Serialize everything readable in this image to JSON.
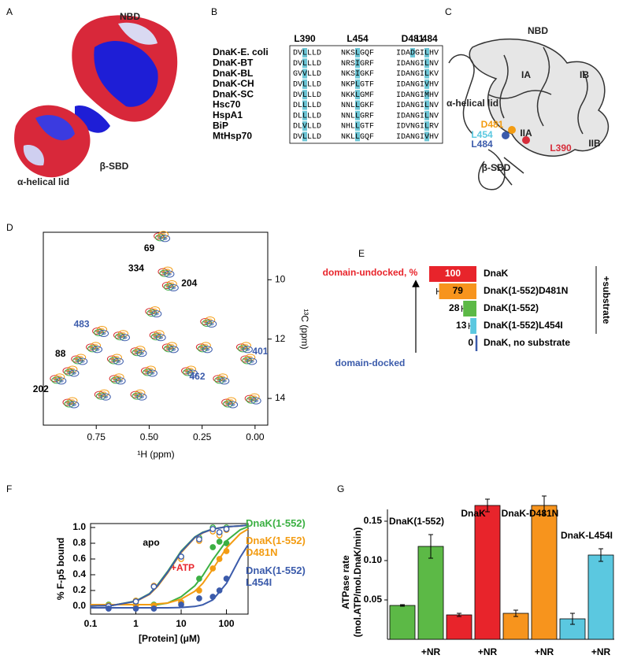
{
  "panel_labels": [
    "A",
    "B",
    "C",
    "D",
    "E",
    "F",
    "G"
  ],
  "panel_a": {
    "labels": [
      "NBD",
      "β-SBD",
      "α-helical lid"
    ]
  },
  "panel_b": {
    "headers": [
      "L390",
      "L454",
      "D481",
      "L484"
    ],
    "rows": [
      {
        "name": "DnaK-E. coli",
        "segments": [
          "DVLLLD",
          "NKSLGQF",
          "IDADGILHV"
        ]
      },
      {
        "name": "DnaK-BT",
        "segments": [
          "DVLLLD",
          "NRSIGRF",
          "IDANGILNV"
        ]
      },
      {
        "name": "DnaK-BL",
        "segments": [
          "GVVLLD",
          "NKSIGKF",
          "IDANGILKV"
        ]
      },
      {
        "name": "DnaK-CH",
        "segments": [
          "DVLLLD",
          "NKPLGTF",
          "IDANGIVHV"
        ]
      },
      {
        "name": "DnaK-SC",
        "segments": [
          "DVLLLD",
          "NKKLGMF",
          "IDANGIMHV"
        ]
      },
      {
        "name": "Hsc70",
        "segments": [
          "DLLLLD",
          "NNLLGKF",
          "IDANGILNV"
        ]
      },
      {
        "name": "HspA1",
        "segments": [
          "DLLLLD",
          "NNLLGRF",
          "IDANGILNV"
        ]
      },
      {
        "name": "BiP",
        "segments": [
          "DLVLLD",
          "NHLLGTF",
          "IDVNGILRV"
        ]
      },
      {
        "name": "MtHsp70",
        "segments": [
          "DVLLLD",
          "NKLLGQF",
          "IDANGIVHV"
        ]
      }
    ]
  },
  "panel_c": {
    "labels": [
      {
        "text": "NBD",
        "color": "#222222"
      },
      {
        "text": "IA",
        "color": "#222222"
      },
      {
        "text": "IB",
        "color": "#222222"
      },
      {
        "text": "α-helical lid",
        "color": "#222222"
      },
      {
        "text": "IIA",
        "color": "#222222"
      },
      {
        "text": "IIB",
        "color": "#222222"
      },
      {
        "text": "D481",
        "color": "#f39c12"
      },
      {
        "text": "L454",
        "color": "#5bc8e0"
      },
      {
        "text": "L484",
        "color": "#3b5bab"
      },
      {
        "text": "L390",
        "color": "#d62d3a"
      },
      {
        "text": "β-SBD",
        "color": "#222222"
      }
    ]
  },
  "chart_data": [
    {
      "type": "contour",
      "x_label": "¹H (ppm)",
      "y_label": "¹³C (ppm)",
      "xlim": [
        1.0,
        -0.06
      ],
      "ylim": [
        8.4,
        14.9
      ],
      "xticks": [
        0.75,
        {
          "value": 0.5,
          "label": "0.50"
        },
        0.25,
        {
          "value": 0,
          "label": "0.00"
        }
      ],
      "yticks": [
        10,
        12,
        14
      ],
      "colors": [
        "#d62d2d",
        "#f39c12",
        "#3cb043",
        "#3b5bab"
      ],
      "peaks": [
        {
          "x": 0.44,
          "y": 8.53,
          "label": "69",
          "label_color": "#000000"
        },
        {
          "x": 0.42,
          "y": 9.73,
          "label": "334",
          "label_color": "#000000"
        },
        {
          "x": 0.4,
          "y": 10.19,
          "label": "204",
          "label_color": "#000000"
        },
        {
          "x": 0.48,
          "y": 11.07
        },
        {
          "x": 0.73,
          "y": 11.73,
          "label": "483",
          "label_color": "#3b5bab"
        },
        {
          "x": 0.63,
          "y": 11.87
        },
        {
          "x": 0.46,
          "y": 11.87
        },
        {
          "x": 0.22,
          "y": 11.41
        },
        {
          "x": 0.24,
          "y": 12.27
        },
        {
          "x": 0.4,
          "y": 12.27
        },
        {
          "x": 0.55,
          "y": 12.4
        },
        {
          "x": 0.66,
          "y": 12.67
        },
        {
          "x": 0.76,
          "y": 12.27
        },
        {
          "x": 0.83,
          "y": 12.67,
          "label": "88",
          "label_color": "#000000"
        },
        {
          "x": 0.87,
          "y": 13.07
        },
        {
          "x": 0.93,
          "y": 13.33,
          "label": "202",
          "label_color": "#000000"
        },
        {
          "x": 0.87,
          "y": 14.13
        },
        {
          "x": 0.65,
          "y": 13.33
        },
        {
          "x": 0.5,
          "y": 13.07
        },
        {
          "x": 0.31,
          "y": 13.07,
          "label": "462",
          "label_color": "#3b5bab"
        },
        {
          "x": 0.16,
          "y": 13.33
        },
        {
          "x": 0.12,
          "y": 14.13
        },
        {
          "x": 0.05,
          "y": 12.27,
          "label": "401",
          "label_color": "#3b5bab"
        },
        {
          "x": 0.01,
          "y": 14.0
        },
        {
          "x": 0.72,
          "y": 13.87
        },
        {
          "x": 0.55,
          "y": 13.87
        },
        {
          "x": 0.03,
          "y": 12.67
        }
      ]
    },
    {
      "type": "hbar",
      "top_label": "domain-undocked, %",
      "bottom_label": "domain-docked",
      "bracket_label": "+substrate",
      "xlim": [
        0,
        100
      ],
      "categories": [
        "DnaK",
        "DnaK(1-552)D481N",
        "DnaK(1-552)",
        "DnaK(1-552)L454I",
        "DnaK, no substrate"
      ],
      "values": [
        100,
        79,
        28,
        13,
        0
      ],
      "errors": [
        null,
        5,
        3,
        3,
        null
      ],
      "colors": [
        "#e8242b",
        "#f7941d",
        "#5cb946",
        "#5bc8e0",
        "#3b5bab"
      ]
    },
    {
      "type": "binding",
      "x_label": "[Protein] (μM)",
      "y_label": "% F-p5 bound",
      "log_x": true,
      "annotations": [
        {
          "text": "apo",
          "color": "#000000"
        },
        {
          "text": "+ATP",
          "color": "#e8242b"
        }
      ],
      "xlim": [
        0.1,
        300
      ],
      "ylim": [
        -0.1,
        1.05
      ],
      "xticks": [
        0.1,
        1,
        10,
        100
      ],
      "yticks": [
        {
          "value": 0,
          "label": "0.0"
        },
        {
          "value": 0.2,
          "label": "0.2"
        },
        {
          "value": 0.4,
          "label": "0.4"
        },
        {
          "value": 0.6,
          "label": "0.6"
        },
        {
          "value": 0.8,
          "label": "0.8"
        },
        {
          "value": 1,
          "label": "1.0"
        }
      ],
      "x": [
        0.25,
        1,
        2.5,
        10,
        25,
        50,
        70,
        100
      ],
      "fit_x": [
        0.1,
        0.3,
        1,
        2,
        3,
        5,
        10,
        20,
        30,
        50,
        100,
        200,
        300
      ],
      "series": [
        {
          "name": "DnaK(1-552)",
          "color": "#3cb043",
          "apo": {
            "values": [
              0,
              0.07,
              0.25,
              0.63,
              0.87,
              1.0,
              0.93,
              1.0
            ],
            "fit": [
              0.002,
              0.01,
              0.066,
              0.16,
              0.27,
              0.44,
              0.7,
              0.88,
              0.94,
              0.98,
              1.01,
              1.02,
              1.03
            ]
          },
          "atp": {
            "values": [
              0.02,
              0.02,
              0.02,
              0.05,
              0.35,
              0.75,
              0.82,
              0.8
            ],
            "fit": [
              0.02,
              0.02,
              0.02,
              0.02,
              0.02,
              0.04,
              0.12,
              0.26,
              0.39,
              0.59,
              0.83,
              0.97,
              1.01
            ]
          }
        },
        {
          "name": "DnaK(1-552) D481N",
          "color": "#f39c12",
          "apo": {
            "values": [
              0,
              0.07,
              0.26,
              0.6,
              0.83,
              0.95,
              0.9,
              0.97
            ],
            "fit": [
              0.002,
              0.01,
              0.06,
              0.15,
              0.25,
              0.42,
              0.68,
              0.87,
              0.93,
              0.98,
              1.01,
              1.02,
              1.03
            ]
          },
          "atp": {
            "values": [
              0.01,
              0.01,
              0.01,
              0.05,
              0.2,
              0.48,
              0.6,
              0.7
            ],
            "fit": [
              0.02,
              0.02,
              0.02,
              0.02,
              0.03,
              0.04,
              0.09,
              0.19,
              0.29,
              0.47,
              0.74,
              0.92,
              0.98
            ]
          }
        },
        {
          "name": "DnaK(1-552) L454I",
          "color": "#3b5bab",
          "apo": {
            "values": [
              0,
              0.06,
              0.25,
              0.63,
              0.85,
              0.98,
              0.94,
              0.98
            ],
            "fit": [
              0.002,
              0.01,
              0.063,
              0.155,
              0.26,
              0.43,
              0.69,
              0.875,
              0.935,
              0.98,
              1.01,
              1.02,
              1.03
            ]
          },
          "atp": {
            "values": [
              -0.03,
              -0.03,
              -0.03,
              0.02,
              0.1,
              0.12,
              0.2,
              0.35
            ],
            "fit": [
              -0.02,
              -0.02,
              -0.02,
              -0.02,
              -0.02,
              -0.02,
              -0.016,
              -0.003,
              0.018,
              0.08,
              0.29,
              0.62,
              0.78
            ]
          }
        }
      ]
    },
    {
      "type": "bar",
      "y_label": [
        "ATPase rate",
        "(mol.ATP/mol.DnaK/min)"
      ],
      "ylim": [
        0,
        0.165
      ],
      "yticks": [
        {
          "value": 0.05,
          "label": "0.05"
        },
        {
          "value": 0.1,
          "label": "0.10"
        },
        {
          "value": 0.15,
          "label": "0.15"
        }
      ],
      "categories": [
        null,
        "+NR"
      ],
      "groups": [
        {
          "name": "DnaK(1-552)",
          "color": "#5cb946",
          "values": [
            0.043,
            0.118
          ],
          "errors": [
            0.001,
            0.015
          ]
        },
        {
          "name": "DnaK",
          "color": "#e8242b",
          "values": [
            0.031,
            0.17
          ],
          "errors": [
            0.002,
            0.008
          ]
        },
        {
          "name": "DnaK-D481N",
          "color": "#f7941d",
          "values": [
            0.033,
            0.17
          ],
          "errors": [
            0.004,
            0.012
          ]
        },
        {
          "name": "DnaK-L454I",
          "color": "#5bc8e0",
          "values": [
            0.026,
            0.107
          ],
          "errors": [
            0.007,
            0.008
          ]
        }
      ]
    }
  ]
}
